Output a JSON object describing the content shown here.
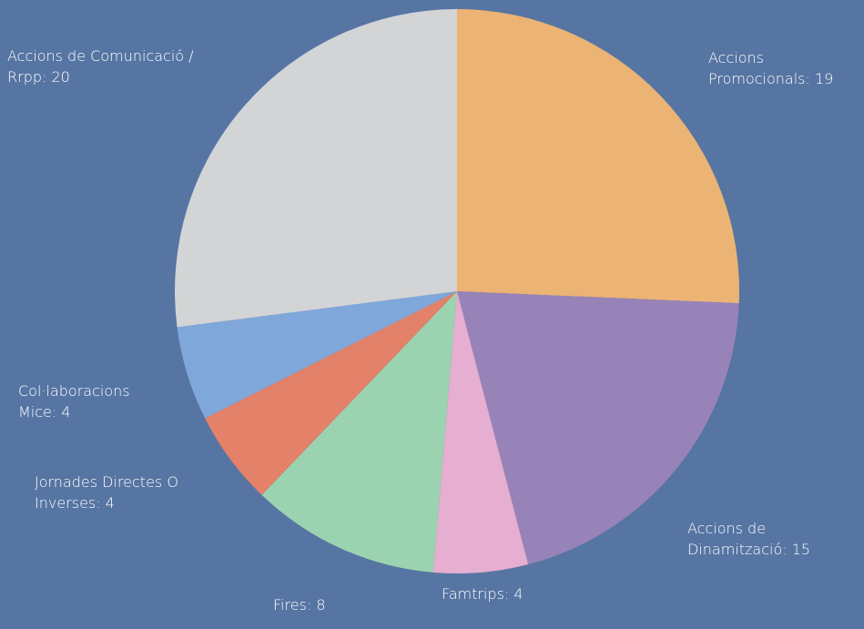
{
  "chart_data": {
    "type": "pie",
    "value_labels": [
      "Accions Promocionals: 19",
      "Accions de Dinamització: 15",
      "Famtrips: 4",
      "Fires: 8",
      "Jornades Directes O Inverses: 4",
      "Col·laboracions Mice: 4",
      "Accions de Comunicació / Rrpp: 20"
    ],
    "values": [
      19,
      15,
      4,
      8,
      4,
      4,
      20
    ],
    "colors": [
      "#ebb374",
      "#9883b8",
      "#e6aed0",
      "#9bd3b0",
      "#e38169",
      "#80a7d9",
      "#d3d4d6"
    ]
  }
}
